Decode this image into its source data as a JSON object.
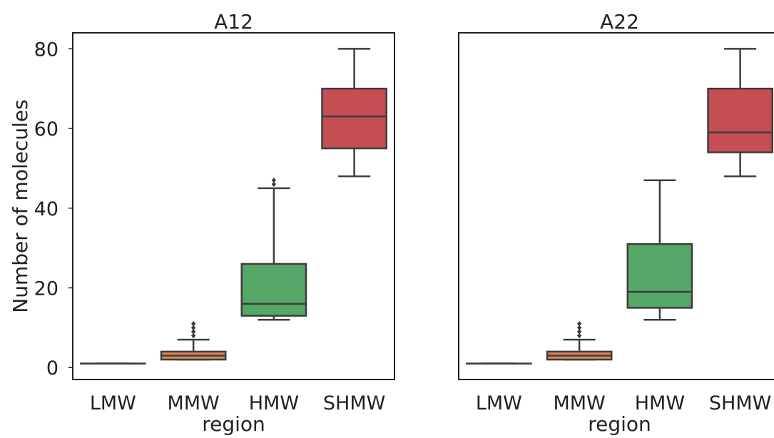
{
  "chart_data": [
    {
      "type": "box",
      "title": "A12",
      "xlabel": "region",
      "ylabel": "Number of molecules",
      "ylim": [
        -3,
        84
      ],
      "yticks": [
        0,
        20,
        40,
        60,
        80
      ],
      "categories": [
        "LMW",
        "MMW",
        "HMW",
        "SHMW"
      ],
      "colors": [
        "#5b9bd5",
        "#dd8452",
        "#55a868",
        "#c44e52"
      ],
      "grid": false,
      "boxes": [
        {
          "category": "LMW",
          "whisker_low": 1,
          "q1": 1,
          "median": 1,
          "q3": 1,
          "whisker_high": 1,
          "outliers": []
        },
        {
          "category": "MMW",
          "whisker_low": 2,
          "q1": 2,
          "median": 3,
          "q3": 4,
          "whisker_high": 7,
          "outliers": [
            8,
            9,
            10,
            11
          ]
        },
        {
          "category": "HMW",
          "whisker_low": 12,
          "q1": 13,
          "median": 16,
          "q3": 26,
          "whisker_high": 45,
          "outliers": [
            46,
            47
          ]
        },
        {
          "category": "SHMW",
          "whisker_low": 48,
          "q1": 55,
          "median": 63,
          "q3": 70,
          "whisker_high": 80,
          "outliers": []
        }
      ]
    },
    {
      "type": "box",
      "title": "A22",
      "xlabel": "region",
      "ylabel": "",
      "ylim": [
        -3,
        84
      ],
      "yticks": [],
      "categories": [
        "LMW",
        "MMW",
        "HMW",
        "SHMW"
      ],
      "colors": [
        "#5b9bd5",
        "#dd8452",
        "#55a868",
        "#c44e52"
      ],
      "grid": false,
      "boxes": [
        {
          "category": "LMW",
          "whisker_low": 1,
          "q1": 1,
          "median": 1,
          "q3": 1,
          "whisker_high": 1,
          "outliers": []
        },
        {
          "category": "MMW",
          "whisker_low": 2,
          "q1": 2,
          "median": 3,
          "q3": 4,
          "whisker_high": 7,
          "outliers": [
            8,
            9,
            10,
            11
          ]
        },
        {
          "category": "HMW",
          "whisker_low": 12,
          "q1": 15,
          "median": 19,
          "q3": 31,
          "whisker_high": 47,
          "outliers": []
        },
        {
          "category": "SHMW",
          "whisker_low": 48,
          "q1": 54,
          "median": 59,
          "q3": 70,
          "whisker_high": 80,
          "outliers": []
        }
      ]
    }
  ]
}
